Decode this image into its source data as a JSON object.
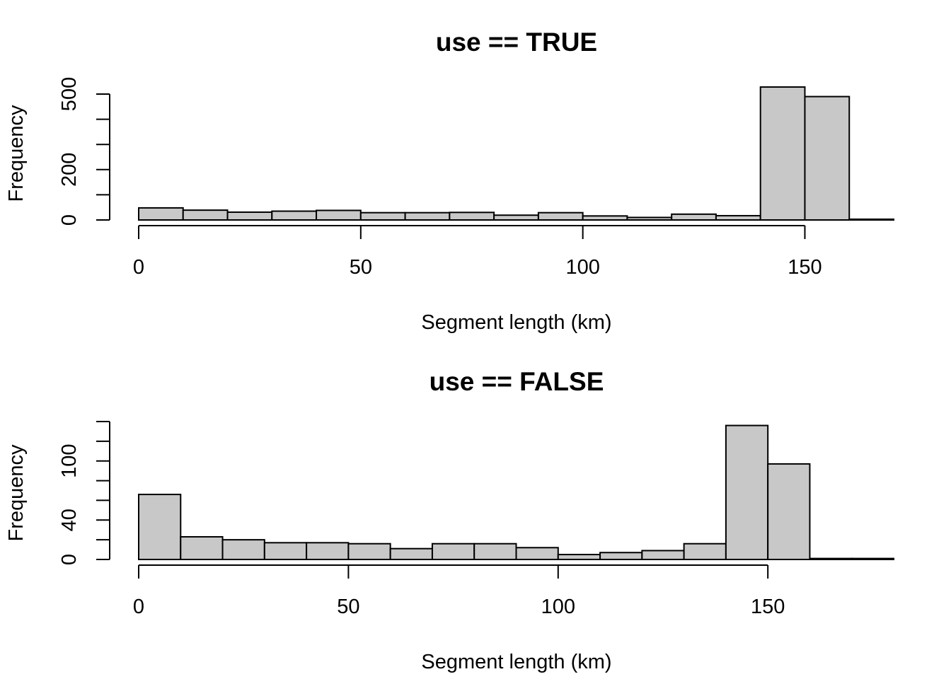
{
  "chart_data": [
    {
      "type": "bar",
      "title": "use == TRUE",
      "xlabel": "Segment length (km)",
      "ylabel": "Frequency",
      "bin_width": 10,
      "bin_starts": [
        0,
        10,
        20,
        30,
        40,
        50,
        60,
        70,
        80,
        90,
        100,
        110,
        120,
        130,
        140,
        150,
        160
      ],
      "values": [
        48,
        39,
        31,
        35,
        38,
        29,
        29,
        30,
        19,
        29,
        16,
        10,
        23,
        17,
        528,
        490,
        3
      ],
      "xlim": [
        0,
        170
      ],
      "ylim": [
        0,
        500
      ],
      "x_ticks": [
        0,
        50,
        100,
        150
      ],
      "y_ticks": [
        0,
        100,
        200,
        300,
        400,
        500
      ],
      "y_tick_labels": [
        "0",
        "",
        "200",
        "",
        "",
        "500"
      ],
      "grid": false,
      "bar_color": "#c8c8c8"
    },
    {
      "type": "bar",
      "title": "use == FALSE",
      "xlabel": "Segment length (km)",
      "ylabel": "Frequency",
      "bin_width": 10,
      "bin_starts": [
        0,
        10,
        20,
        30,
        40,
        50,
        60,
        70,
        80,
        90,
        100,
        110,
        120,
        130,
        140,
        150,
        160,
        170
      ],
      "values": [
        66,
        23,
        20,
        17,
        17,
        16,
        11,
        16,
        16,
        12,
        5,
        7,
        9,
        16,
        136,
        97,
        1,
        1
      ],
      "xlim": [
        0,
        180
      ],
      "ylim": [
        0,
        140
      ],
      "x_ticks": [
        0,
        50,
        100,
        150
      ],
      "y_ticks": [
        0,
        20,
        40,
        60,
        80,
        100,
        120,
        140
      ],
      "y_tick_labels": [
        "0",
        "",
        "40",
        "",
        "",
        "100",
        "",
        ""
      ],
      "grid": false,
      "bar_color": "#c8c8c8"
    }
  ]
}
